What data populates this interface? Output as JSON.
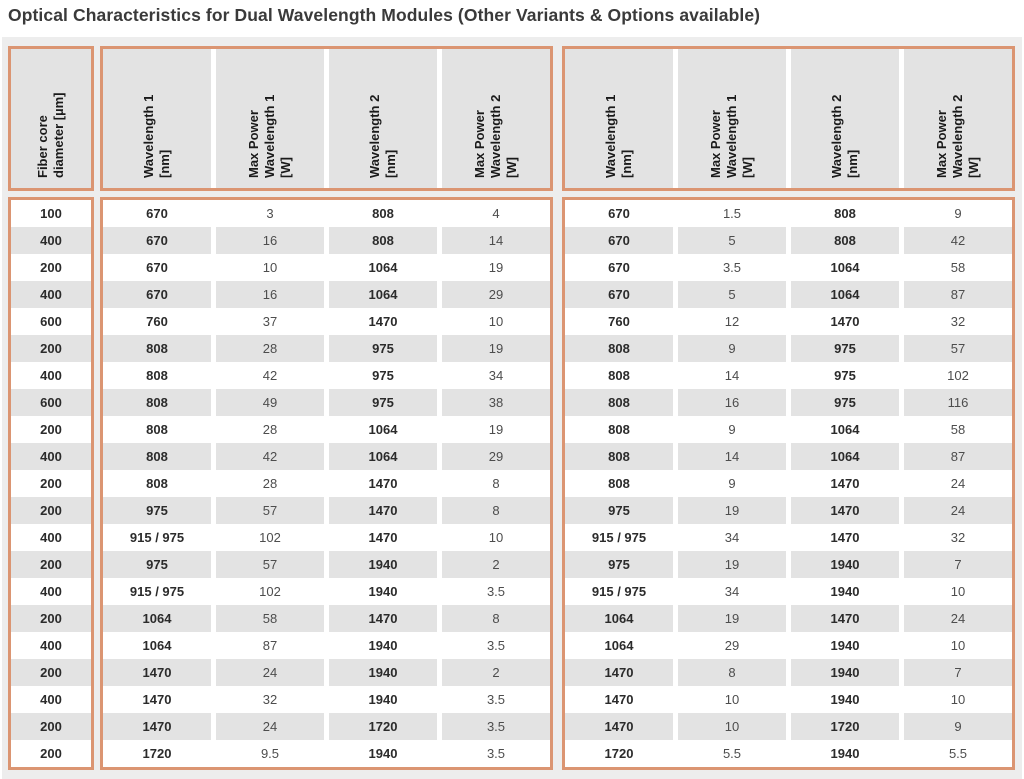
{
  "title": "Optical Characteristics for Dual Wavelength Modules (Other Variants & Options available)",
  "colors": {
    "frame_orange": "#db9572",
    "cell_gray": "#e3e3e3",
    "panel_gray": "#ededed",
    "bold_text": "#2b2b2b",
    "regular_text": "#4d4d4d"
  },
  "table": {
    "fiber_header": "Fiber core\ndiameter [µm]",
    "group_headers": [
      "Wavelength 1\n[nm]",
      "Max Power\nWavelength 1\n[W]",
      "Wavelength 2\n[nm]",
      "Max Power\nWavelength 2\n[W]"
    ],
    "rows": [
      {
        "fiber": "100",
        "g1": [
          "670",
          "3",
          "808",
          "4"
        ],
        "g2": [
          "670",
          "1.5",
          "808",
          "9"
        ]
      },
      {
        "fiber": "400",
        "g1": [
          "670",
          "16",
          "808",
          "14"
        ],
        "g2": [
          "670",
          "5",
          "808",
          "42"
        ]
      },
      {
        "fiber": "200",
        "g1": [
          "670",
          "10",
          "1064",
          "19"
        ],
        "g2": [
          "670",
          "3.5",
          "1064",
          "58"
        ]
      },
      {
        "fiber": "400",
        "g1": [
          "670",
          "16",
          "1064",
          "29"
        ],
        "g2": [
          "670",
          "5",
          "1064",
          "87"
        ]
      },
      {
        "fiber": "600",
        "g1": [
          "760",
          "37",
          "1470",
          "10"
        ],
        "g2": [
          "760",
          "12",
          "1470",
          "32"
        ]
      },
      {
        "fiber": "200",
        "g1": [
          "808",
          "28",
          "975",
          "19"
        ],
        "g2": [
          "808",
          "9",
          "975",
          "57"
        ]
      },
      {
        "fiber": "400",
        "g1": [
          "808",
          "42",
          "975",
          "34"
        ],
        "g2": [
          "808",
          "14",
          "975",
          "102"
        ]
      },
      {
        "fiber": "600",
        "g1": [
          "808",
          "49",
          "975",
          "38"
        ],
        "g2": [
          "808",
          "16",
          "975",
          "116"
        ]
      },
      {
        "fiber": "200",
        "g1": [
          "808",
          "28",
          "1064",
          "19"
        ],
        "g2": [
          "808",
          "9",
          "1064",
          "58"
        ]
      },
      {
        "fiber": "400",
        "g1": [
          "808",
          "42",
          "1064",
          "29"
        ],
        "g2": [
          "808",
          "14",
          "1064",
          "87"
        ]
      },
      {
        "fiber": "200",
        "g1": [
          "808",
          "28",
          "1470",
          "8"
        ],
        "g2": [
          "808",
          "9",
          "1470",
          "24"
        ]
      },
      {
        "fiber": "200",
        "g1": [
          "975",
          "57",
          "1470",
          "8"
        ],
        "g2": [
          "975",
          "19",
          "1470",
          "24"
        ]
      },
      {
        "fiber": "400",
        "g1": [
          "915 / 975",
          "102",
          "1470",
          "10"
        ],
        "g2": [
          "915 / 975",
          "34",
          "1470",
          "32"
        ]
      },
      {
        "fiber": "200",
        "g1": [
          "975",
          "57",
          "1940",
          "2"
        ],
        "g2": [
          "975",
          "19",
          "1940",
          "7"
        ]
      },
      {
        "fiber": "400",
        "g1": [
          "915 / 975",
          "102",
          "1940",
          "3.5"
        ],
        "g2": [
          "915 / 975",
          "34",
          "1940",
          "10"
        ]
      },
      {
        "fiber": "200",
        "g1": [
          "1064",
          "58",
          "1470",
          "8"
        ],
        "g2": [
          "1064",
          "19",
          "1470",
          "24"
        ]
      },
      {
        "fiber": "400",
        "g1": [
          "1064",
          "87",
          "1940",
          "3.5"
        ],
        "g2": [
          "1064",
          "29",
          "1940",
          "10"
        ]
      },
      {
        "fiber": "200",
        "g1": [
          "1470",
          "24",
          "1940",
          "2"
        ],
        "g2": [
          "1470",
          "8",
          "1940",
          "7"
        ]
      },
      {
        "fiber": "400",
        "g1": [
          "1470",
          "32",
          "1940",
          "3.5"
        ],
        "g2": [
          "1470",
          "10",
          "1940",
          "10"
        ]
      },
      {
        "fiber": "200",
        "g1": [
          "1470",
          "24",
          "1720",
          "3.5"
        ],
        "g2": [
          "1470",
          "10",
          "1720",
          "9"
        ]
      },
      {
        "fiber": "200",
        "g1": [
          "1720",
          "9.5",
          "1940",
          "3.5"
        ],
        "g2": [
          "1720",
          "5.5",
          "1940",
          "5.5"
        ]
      }
    ]
  },
  "chart_data": {
    "type": "table",
    "title": "Optical Characteristics for Dual Wavelength Modules (Other Variants & Options available)",
    "columns": [
      "Fiber core diameter [µm]",
      "Wavelength 1 [nm]",
      "Max Power Wavelength 1 [W]",
      "Wavelength 2 [nm]",
      "Max Power Wavelength 2 [W]",
      "Wavelength 1 [nm]",
      "Max Power Wavelength 1 [W]",
      "Wavelength 2 [nm]",
      "Max Power Wavelength 2 [W]"
    ],
    "rows": [
      [
        "100",
        "670",
        "3",
        "808",
        "4",
        "670",
        "1.5",
        "808",
        "9"
      ],
      [
        "400",
        "670",
        "16",
        "808",
        "14",
        "670",
        "5",
        "808",
        "42"
      ],
      [
        "200",
        "670",
        "10",
        "1064",
        "19",
        "670",
        "3.5",
        "1064",
        "58"
      ],
      [
        "400",
        "670",
        "16",
        "1064",
        "29",
        "670",
        "5",
        "1064",
        "87"
      ],
      [
        "600",
        "760",
        "37",
        "1470",
        "10",
        "760",
        "12",
        "1470",
        "32"
      ],
      [
        "200",
        "808",
        "28",
        "975",
        "19",
        "808",
        "9",
        "975",
        "57"
      ],
      [
        "400",
        "808",
        "42",
        "975",
        "34",
        "808",
        "14",
        "975",
        "102"
      ],
      [
        "600",
        "808",
        "49",
        "975",
        "38",
        "808",
        "16",
        "975",
        "116"
      ],
      [
        "200",
        "808",
        "28",
        "1064",
        "19",
        "808",
        "9",
        "1064",
        "58"
      ],
      [
        "400",
        "808",
        "42",
        "1064",
        "29",
        "808",
        "14",
        "1064",
        "87"
      ],
      [
        "200",
        "808",
        "28",
        "1470",
        "8",
        "808",
        "9",
        "1470",
        "24"
      ],
      [
        "200",
        "975",
        "57",
        "1470",
        "8",
        "975",
        "19",
        "1470",
        "24"
      ],
      [
        "400",
        "915 / 975",
        "102",
        "1470",
        "10",
        "915 / 975",
        "34",
        "1470",
        "32"
      ],
      [
        "200",
        "975",
        "57",
        "1940",
        "2",
        "975",
        "19",
        "1940",
        "7"
      ],
      [
        "400",
        "915 / 975",
        "102",
        "1940",
        "3.5",
        "915 / 975",
        "34",
        "1940",
        "10"
      ],
      [
        "200",
        "1064",
        "58",
        "1470",
        "8",
        "1064",
        "19",
        "1470",
        "24"
      ],
      [
        "400",
        "1064",
        "87",
        "1940",
        "3.5",
        "1064",
        "29",
        "1940",
        "10"
      ],
      [
        "200",
        "1470",
        "24",
        "1940",
        "2",
        "1470",
        "8",
        "1940",
        "7"
      ],
      [
        "400",
        "1470",
        "32",
        "1940",
        "3.5",
        "1470",
        "10",
        "1940",
        "10"
      ],
      [
        "200",
        "1470",
        "24",
        "1720",
        "3.5",
        "1470",
        "10",
        "1720",
        "9"
      ],
      [
        "200",
        "1720",
        "9.5",
        "1940",
        "3.5",
        "1720",
        "5.5",
        "1940",
        "5.5"
      ]
    ]
  }
}
